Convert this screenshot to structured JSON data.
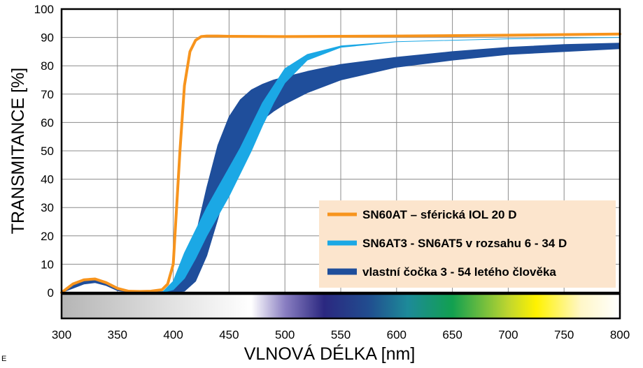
{
  "chart_data": {
    "type": "line",
    "title": "",
    "xlabel": "VLNOVÁ DÉLKA [nm]",
    "ylabel": "TRANSMITANCE [%]",
    "xlim": [
      300,
      800
    ],
    "ylim": [
      0,
      100
    ],
    "x_ticks": [
      300,
      350,
      400,
      450,
      500,
      550,
      600,
      650,
      700,
      750,
      800
    ],
    "y_ticks": [
      0,
      10,
      20,
      30,
      40,
      50,
      60,
      70,
      80,
      90,
      100
    ],
    "grid": true,
    "legend_position": "bottom-right",
    "series": [
      {
        "name": "SN60AT – sférická IOL 20 D",
        "style": "line",
        "color": "#F7941D",
        "x": [
          300,
          310,
          320,
          330,
          340,
          350,
          360,
          370,
          380,
          390,
          395,
          400,
          403,
          406,
          410,
          415,
          420,
          425,
          430,
          440,
          450,
          500,
          600,
          700,
          800
        ],
        "y": [
          0,
          3,
          4.5,
          4.8,
          3.5,
          1.5,
          0.5,
          0.4,
          0.5,
          1,
          3,
          10,
          30,
          50,
          73,
          85,
          89,
          90.3,
          90.5,
          90.5,
          90.4,
          90.3,
          90.5,
          90.8,
          91.2
        ]
      },
      {
        "name": "SN6AT3 - SN6AT5 v rozsahu 6 - 34 D",
        "style": "band",
        "color": "#1BA8E5",
        "x": [
          390,
          400,
          410,
          420,
          430,
          440,
          450,
          460,
          470,
          480,
          490,
          500,
          520,
          550,
          600,
          700,
          800
        ],
        "upper": [
          0,
          4,
          14,
          22,
          30,
          37,
          44,
          51,
          59,
          67,
          73,
          79,
          84,
          87,
          88.5,
          89.5,
          90
        ],
        "lower": [
          0,
          1,
          5,
          12,
          20,
          27,
          34,
          42,
          50,
          59,
          67,
          74,
          82,
          86.5,
          88.5,
          89.5,
          90
        ]
      },
      {
        "name": "vlastní čočka 3 - 54 letého člověka",
        "style": "band",
        "color": "#1F4E9B",
        "x": [
          300,
          310,
          320,
          330,
          340,
          350,
          360,
          390,
          400,
          410,
          420,
          430,
          440,
          450,
          460,
          470,
          480,
          490,
          500,
          520,
          550,
          600,
          650,
          700,
          750,
          800
        ],
        "upper": [
          0,
          2.5,
          4,
          4.5,
          3.5,
          1.5,
          0.5,
          0.3,
          2,
          8,
          20,
          37,
          52,
          62,
          68,
          71.5,
          73.5,
          75,
          76,
          78,
          80.5,
          83,
          85,
          86.5,
          87.5,
          88
        ],
        "lower": [
          0,
          1.5,
          3,
          3.5,
          2.5,
          0.7,
          0.2,
          0,
          0,
          0.5,
          4,
          13,
          26,
          40,
          51,
          57,
          61,
          64,
          66.5,
          70.5,
          75,
          79.5,
          82,
          84,
          85,
          86
        ]
      }
    ]
  },
  "footnote": "E"
}
